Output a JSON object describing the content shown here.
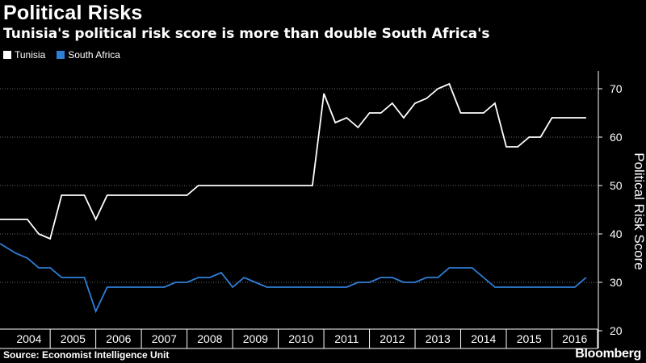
{
  "header": {
    "title": "Political Risks",
    "subtitle": "Tunisia's political risk score is more than double South Africa's"
  },
  "footer": {
    "source": "Source: Economist Intelligence Unit",
    "brand": "Bloomberg"
  },
  "colors": {
    "tunisia": "#ffffff",
    "south_africa": "#2f7fd8",
    "grid": "#6a6a6a",
    "background": "#000000"
  },
  "chart_data": {
    "type": "line",
    "title": "Political Risks",
    "subtitle": "Tunisia's political risk score is more than double South Africa's",
    "ylabel": "Political Risk Score",
    "xlabel": "",
    "ylim": [
      20,
      75
    ],
    "yticks": [
      20,
      30,
      40,
      50,
      60,
      70
    ],
    "xlim": [
      2003.9,
      2017.0
    ],
    "xticks": [
      "2004",
      "2005",
      "2006",
      "2007",
      "2008",
      "2009",
      "2010",
      "2011",
      "2012",
      "2013",
      "2014",
      "2015",
      "2016"
    ],
    "grid": true,
    "legend": "top-left",
    "series": [
      {
        "name": "Tunisia",
        "color": "#ffffff",
        "x": [
          2003.9,
          2004.5,
          2004.75,
          2005.0,
          2005.25,
          2005.75,
          2006.0,
          2006.25,
          2007.5,
          2008.0,
          2008.25,
          2010.75,
          2011.0,
          2011.25,
          2011.5,
          2011.75,
          2012.0,
          2012.25,
          2012.5,
          2012.75,
          2013.0,
          2013.25,
          2013.5,
          2013.75,
          2014.0,
          2014.5,
          2014.75,
          2015.0,
          2015.25,
          2015.5,
          2015.75,
          2016.0,
          2016.25,
          2016.75
        ],
        "y": [
          43,
          43,
          40,
          39,
          48,
          48,
          43,
          48,
          48,
          48,
          50,
          50,
          69,
          63,
          64,
          62,
          65,
          65,
          67,
          64,
          67,
          68,
          70,
          71,
          65,
          65,
          67,
          58,
          58,
          60,
          60,
          64,
          64,
          64
        ]
      },
      {
        "name": "South Africa",
        "color": "#2f7fd8",
        "x": [
          2003.9,
          2004.25,
          2004.5,
          2004.75,
          2005.0,
          2005.25,
          2005.75,
          2006.0,
          2006.25,
          2007.25,
          2007.5,
          2007.75,
          2008.0,
          2008.25,
          2008.5,
          2008.75,
          2009.0,
          2009.25,
          2009.5,
          2009.75,
          2011.0,
          2011.25,
          2011.5,
          2011.75,
          2012.0,
          2012.25,
          2012.5,
          2012.75,
          2013.0,
          2013.25,
          2013.5,
          2013.75,
          2014.0,
          2014.25,
          2014.5,
          2014.75,
          2015.75,
          2016.0,
          2016.25,
          2016.5,
          2016.75
        ],
        "y": [
          38,
          36,
          35,
          33,
          33,
          31,
          31,
          24,
          29,
          29,
          29,
          30,
          30,
          31,
          31,
          32,
          29,
          31,
          30,
          29,
          29,
          29,
          29,
          30,
          30,
          31,
          31,
          30,
          30,
          31,
          31,
          33,
          33,
          33,
          31,
          29,
          29,
          29,
          29,
          29,
          31
        ]
      }
    ]
  }
}
